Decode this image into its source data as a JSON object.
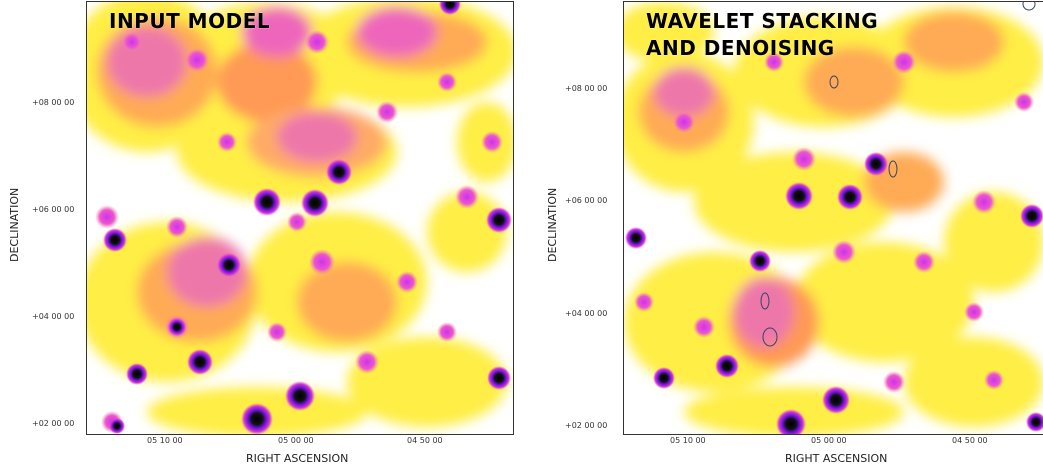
{
  "left_panel": {
    "title": "INPUT MODEL",
    "x_axis_label": "RIGHT ASCENSION",
    "y_axis_label": "DECLINATION",
    "x_ticks": [
      "05 10 00",
      "05 00 00",
      "04 50 00"
    ],
    "y_ticks": [
      "+08 00 00",
      "+06 00 00",
      "+04 00 00",
      "+02 00 00"
    ]
  },
  "right_panel": {
    "title_line1": "WAVELET STACKING",
    "title_line2": "AND DENOISING",
    "x_axis_label": "RIGHT ASCENSION",
    "y_axis_label": "DECLINATION",
    "x_ticks": [
      "05 10 00",
      "05 00 00",
      "04 50 00"
    ],
    "y_ticks": [
      "+08 00 00",
      "+06 00 00",
      "+04 00 00",
      "+02 00 00"
    ]
  },
  "colors": {
    "background": "#ffffff",
    "low_emission": "#ffff33",
    "mid_emission": "#ff9933",
    "high_emission": "#ee44cc",
    "peak": "#6611cc",
    "core": "#000000",
    "contour": "#334466"
  }
}
